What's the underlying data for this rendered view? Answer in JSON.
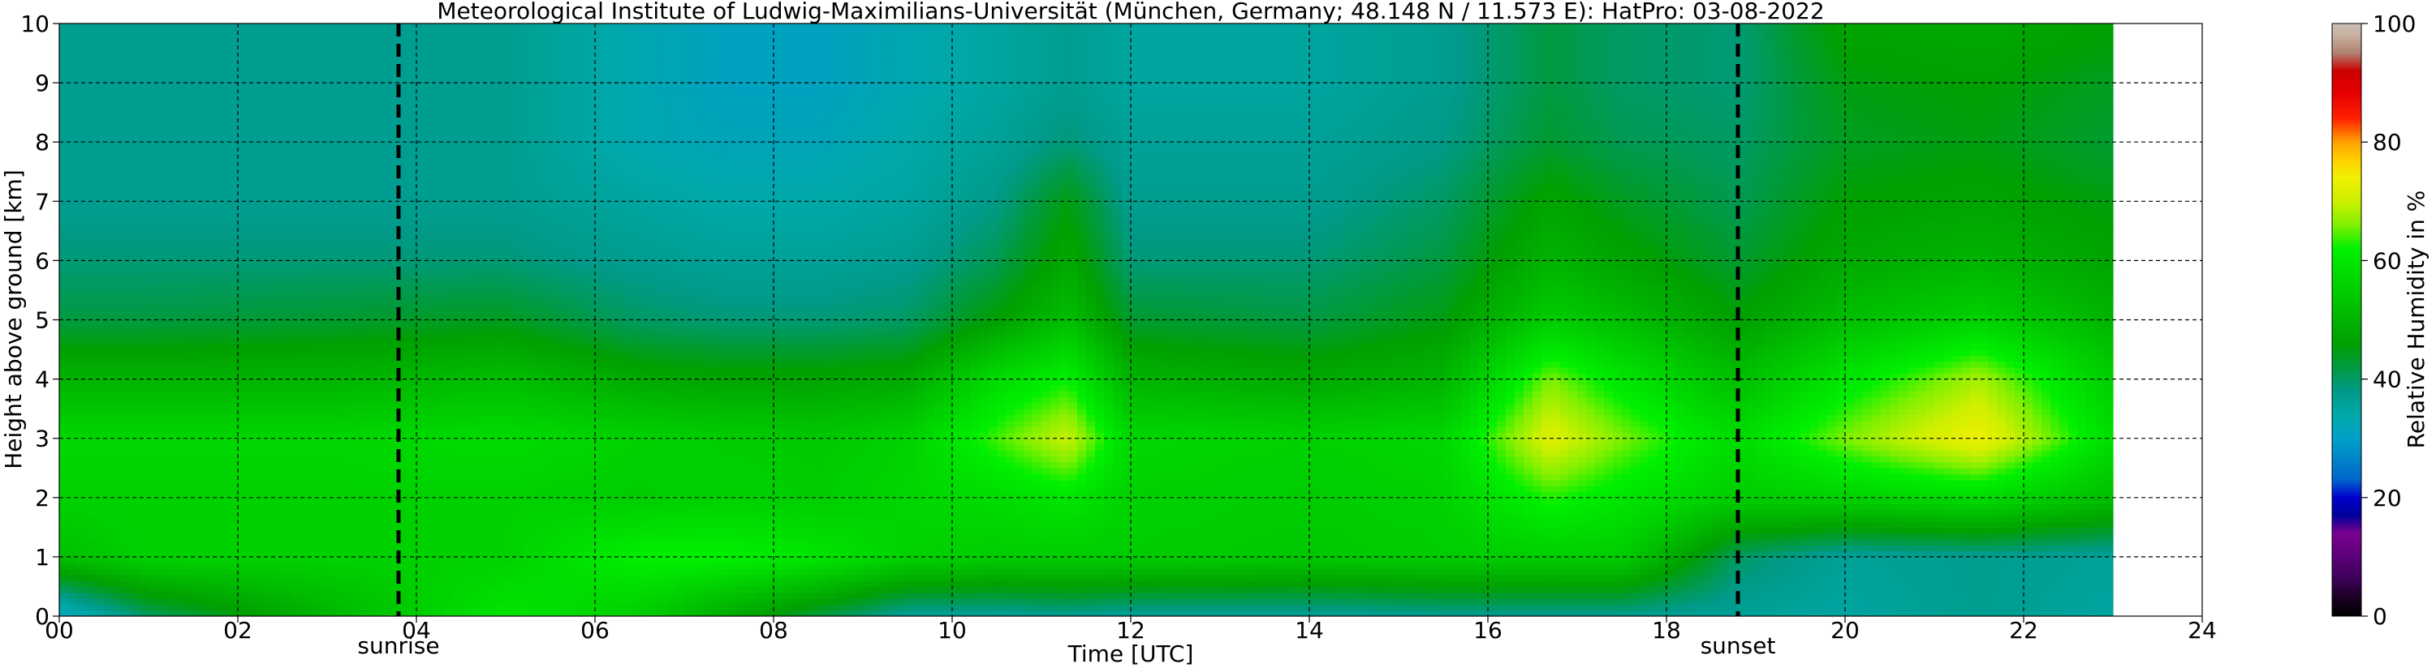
{
  "chart_data": {
    "type": "heatmap",
    "title": "Meteorological Institute of Ludwig-Maximilians-Universität (München, Germany; 48.148 N / 11.573 E):    HatPro: 03-08-2022",
    "xlabel": "Time [UTC]",
    "ylabel": "Height above ground [km]",
    "xlim": [
      0,
      24
    ],
    "ylim": [
      0,
      10
    ],
    "x_ticks": [
      "00",
      "02",
      "04",
      "06",
      "08",
      "10",
      "12",
      "14",
      "16",
      "18",
      "20",
      "22",
      "24"
    ],
    "y_ticks": [
      "0",
      "1",
      "2",
      "3",
      "4",
      "5",
      "6",
      "7",
      "8",
      "9",
      "10"
    ],
    "grid": true,
    "data_end_hour": 23.0,
    "events": [
      {
        "label": "sunrise",
        "hour": 3.8
      },
      {
        "label": "sunset",
        "hour": 18.8
      }
    ],
    "colorbar": {
      "label": "Relative Humidity in %",
      "range": [
        0,
        100
      ],
      "ticks": [
        "0",
        "20",
        "40",
        "60",
        "80",
        "100"
      ],
      "stops": [
        {
          "value": 0,
          "color": "#000000"
        },
        {
          "value": 3,
          "color": "#1a0020"
        },
        {
          "value": 6,
          "color": "#3a0055"
        },
        {
          "value": 10,
          "color": "#5a0078"
        },
        {
          "value": 14,
          "color": "#7a0090"
        },
        {
          "value": 17,
          "color": "#00009a"
        },
        {
          "value": 20,
          "color": "#0000cc"
        },
        {
          "value": 23,
          "color": "#0066cc"
        },
        {
          "value": 27,
          "color": "#0088c8"
        },
        {
          "value": 30,
          "color": "#00a0c8"
        },
        {
          "value": 34,
          "color": "#00a8a8"
        },
        {
          "value": 38,
          "color": "#009a88"
        },
        {
          "value": 42,
          "color": "#009a40"
        },
        {
          "value": 46,
          "color": "#00a000"
        },
        {
          "value": 50,
          "color": "#00b400"
        },
        {
          "value": 54,
          "color": "#00c800"
        },
        {
          "value": 58,
          "color": "#00dc00"
        },
        {
          "value": 62,
          "color": "#00f000"
        },
        {
          "value": 66,
          "color": "#80f000"
        },
        {
          "value": 70,
          "color": "#ccf000"
        },
        {
          "value": 74,
          "color": "#f0f000"
        },
        {
          "value": 77,
          "color": "#ffd000"
        },
        {
          "value": 80,
          "color": "#ffa000"
        },
        {
          "value": 84,
          "color": "#ff2000"
        },
        {
          "value": 88,
          "color": "#e80000"
        },
        {
          "value": 92,
          "color": "#cc0000"
        },
        {
          "value": 95,
          "color": "#b08070"
        },
        {
          "value": 98,
          "color": "#c8b0a0"
        },
        {
          "value": 100,
          "color": "#c8c0b8"
        }
      ]
    },
    "time_profiles": [
      {
        "t": 0.0,
        "rh": [
          30,
          52,
          56,
          57,
          50,
          42,
          39,
          37,
          37,
          37,
          37
        ]
      },
      {
        "t": 1.0,
        "rh": [
          40,
          56,
          56,
          57,
          50,
          42,
          39,
          37,
          37,
          37,
          37
        ]
      },
      {
        "t": 3.0,
        "rh": [
          50,
          56,
          56,
          57,
          50,
          43,
          39,
          37,
          37,
          37,
          37
        ]
      },
      {
        "t": 5.0,
        "rh": [
          60,
          56,
          56,
          58,
          52,
          44,
          39,
          37,
          37,
          37,
          37
        ]
      },
      {
        "t": 6.5,
        "rh": [
          55,
          62,
          55,
          56,
          48,
          40,
          37,
          35,
          33,
          33,
          33
        ]
      },
      {
        "t": 7.5,
        "rh": [
          48,
          62,
          56,
          55,
          47,
          39,
          36,
          34,
          32,
          31,
          31
        ]
      },
      {
        "t": 8.5,
        "rh": [
          42,
          60,
          55,
          54,
          47,
          39,
          36,
          34,
          32,
          31,
          31
        ]
      },
      {
        "t": 9.5,
        "rh": [
          36,
          56,
          57,
          56,
          48,
          40,
          37,
          35,
          34,
          33,
          33
        ]
      },
      {
        "t": 10.5,
        "rh": [
          36,
          55,
          58,
          64,
          58,
          46,
          41,
          38,
          36,
          35,
          35
        ]
      },
      {
        "t": 11.3,
        "rh": [
          37,
          55,
          60,
          70,
          62,
          52,
          48,
          45,
          39,
          37,
          37
        ]
      },
      {
        "t": 12.0,
        "rh": [
          36,
          55,
          56,
          57,
          50,
          43,
          39,
          37,
          36,
          35,
          35
        ]
      },
      {
        "t": 14.0,
        "rh": [
          36,
          54,
          55,
          56,
          48,
          42,
          39,
          37,
          36,
          35,
          35
        ]
      },
      {
        "t": 15.5,
        "rh": [
          37,
          55,
          56,
          57,
          50,
          45,
          42,
          40,
          38,
          37,
          37
        ]
      },
      {
        "t": 16.7,
        "rh": [
          37,
          55,
          63,
          72,
          66,
          55,
          50,
          47,
          43,
          42,
          42
        ]
      },
      {
        "t": 17.5,
        "rh": [
          37,
          55,
          60,
          66,
          60,
          52,
          47,
          44,
          41,
          40,
          40
        ]
      },
      {
        "t": 18.8,
        "rh": [
          36,
          40,
          55,
          58,
          52,
          46,
          43,
          41,
          40,
          39,
          39
        ]
      },
      {
        "t": 20.0,
        "rh": [
          35,
          36,
          56,
          66,
          60,
          52,
          48,
          46,
          44,
          45,
          47
        ]
      },
      {
        "t": 21.5,
        "rh": [
          37,
          37,
          58,
          74,
          68,
          56,
          50,
          47,
          45,
          46,
          48
        ]
      },
      {
        "t": 23.0,
        "rh": [
          35,
          36,
          52,
          58,
          55,
          50,
          47,
          45,
          43,
          44,
          46
        ]
      }
    ],
    "profile_heights_km": [
      0,
      1,
      2,
      3,
      4,
      5,
      6,
      7,
      8,
      9,
      10
    ]
  }
}
